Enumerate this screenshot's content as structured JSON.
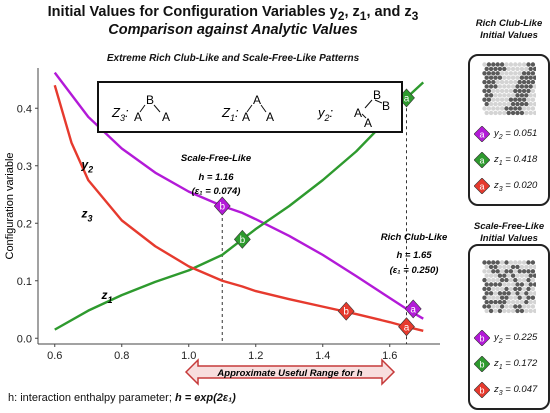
{
  "title_line1": "Initial Values for Configuration Variables y",
  "title_line1_vars": [
    "2",
    ", z",
    "1",
    ", and z",
    "3"
  ],
  "title_line2": "Comparison against Analytic Values",
  "subtitle": "Extreme Rich Club-Like and Scale-Free-Like Patterns",
  "footer_label": "h: interaction enthalpy parameter; ",
  "footer_formula": "h = exp(2ε₁)",
  "range_label": "Approximate Useful Range for h",
  "annotations": {
    "scale_free_title": "Scale-Free-Like",
    "scale_free_h": "h = 1.16",
    "scale_free_eps": "(ε₁ = 0.074)",
    "rich_club_title": "Rich Club-Like",
    "rich_club_h": "h = 1.65",
    "rich_club_eps": "(ε₁ = 0.250)"
  },
  "motifs": {
    "z3": [
      "Z",
      "3",
      ":",
      "B",
      "A",
      "A"
    ],
    "z1": [
      "Z",
      "1",
      ":",
      "A",
      "A",
      "A"
    ],
    "y2": [
      "y",
      "2",
      ":",
      "B",
      "A",
      "B",
      "A"
    ]
  },
  "colors": {
    "y2": "#b31ad8",
    "z1": "#2e9a2e",
    "z3": "#e63a2e"
  },
  "chart_data": {
    "type": "line",
    "xlabel": "",
    "ylabel": "Configuration variable",
    "xlim": [
      0.55,
      1.75
    ],
    "ylim": [
      -0.01,
      0.47
    ],
    "x_ticks": [
      "0.6",
      "0.8",
      "1.0",
      "1.2",
      "1.4",
      "1.6"
    ],
    "y_ticks": [
      "0.0",
      "0.1",
      "0.2",
      "0.3",
      "0.4"
    ],
    "series": [
      {
        "name": "y2",
        "x": [
          0.6,
          0.7,
          0.8,
          0.9,
          1.0,
          1.1,
          1.16,
          1.2,
          1.3,
          1.4,
          1.5,
          1.6,
          1.65,
          1.7
        ],
        "values": [
          0.462,
          0.385,
          0.33,
          0.288,
          0.255,
          0.23,
          0.218,
          0.207,
          0.178,
          0.145,
          0.108,
          0.07,
          0.051,
          0.034
        ]
      },
      {
        "name": "z1",
        "x": [
          0.6,
          0.7,
          0.8,
          0.9,
          1.0,
          1.1,
          1.16,
          1.2,
          1.3,
          1.4,
          1.5,
          1.6,
          1.65,
          1.7
        ],
        "values": [
          0.015,
          0.048,
          0.075,
          0.098,
          0.118,
          0.145,
          0.172,
          0.19,
          0.23,
          0.275,
          0.325,
          0.385,
          0.418,
          0.445
        ]
      },
      {
        "name": "z3",
        "x": [
          0.6,
          0.65,
          0.7,
          0.8,
          0.9,
          1.0,
          1.1,
          1.16,
          1.2,
          1.3,
          1.4,
          1.5,
          1.6,
          1.65,
          1.7
        ],
        "values": [
          0.44,
          0.34,
          0.275,
          0.205,
          0.16,
          0.125,
          0.1,
          0.09,
          0.082,
          0.068,
          0.055,
          0.042,
          0.028,
          0.02,
          0.013
        ]
      }
    ],
    "markers": [
      {
        "series": "y2",
        "x": 1.1,
        "y": 0.23,
        "letter": "b"
      },
      {
        "series": "z1",
        "x": 1.16,
        "y": 0.172,
        "letter": "b"
      },
      {
        "series": "z3",
        "x": 1.47,
        "y": 0.047,
        "letter": "b"
      },
      {
        "series": "z1",
        "x": 1.65,
        "y": 0.418,
        "letter": "a"
      },
      {
        "series": "y2",
        "x": 1.67,
        "y": 0.051,
        "letter": "a"
      },
      {
        "series": "z3",
        "x": 1.65,
        "y": 0.02,
        "letter": "a"
      }
    ],
    "dashed_lines_x": [
      1.1,
      1.65
    ]
  },
  "panel_rich": {
    "title": [
      "Rich Club-Like",
      "Initial Values"
    ],
    "entries": [
      {
        "letter": "a",
        "color": "#b31ad8",
        "var": "y",
        "sub": "2",
        "value": " = 0.051"
      },
      {
        "letter": "a",
        "color": "#2e9a2e",
        "var": "z",
        "sub": "1",
        "value": " = 0.418"
      },
      {
        "letter": "a",
        "color": "#e63a2e",
        "var": "z",
        "sub": "3",
        "value": " = 0.020"
      }
    ]
  },
  "panel_scale": {
    "title": [
      "Scale-Free-Like",
      "Initial Values"
    ],
    "entries": [
      {
        "letter": "b",
        "color": "#b31ad8",
        "var": "y",
        "sub": "2",
        "value": " = 0.225"
      },
      {
        "letter": "b",
        "color": "#2e9a2e",
        "var": "z",
        "sub": "1",
        "value": " = 0.172"
      },
      {
        "letter": "b",
        "color": "#e63a2e",
        "var": "z",
        "sub": "3",
        "value": " = 0.047"
      }
    ]
  }
}
